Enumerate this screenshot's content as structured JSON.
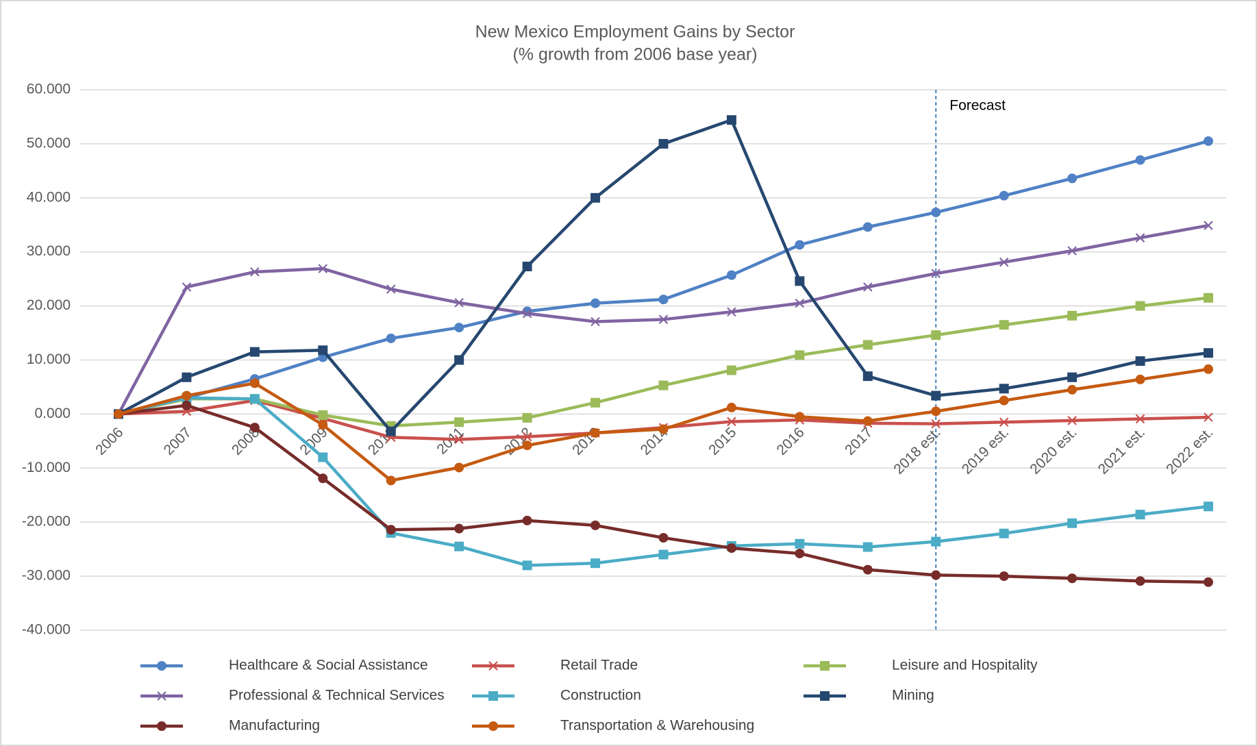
{
  "chart_data": {
    "type": "line",
    "title": "New Mexico Employment Gains by Sector",
    "subtitle": "(% growth from 2006 base year)",
    "categories": [
      "2006",
      "2007",
      "2008",
      "2009",
      "2010",
      "2011",
      "2012",
      "2013",
      "2014",
      "2015",
      "2016",
      "2017",
      "2018 est.",
      "2019 est.",
      "2020 est.",
      "2021 est.",
      "2022 est."
    ],
    "ylim": [
      -40,
      60
    ],
    "yticks": [
      {
        "value": -40,
        "label": "-40.000"
      },
      {
        "value": -30,
        "label": "-30.000"
      },
      {
        "value": -20,
        "label": "-20.000"
      },
      {
        "value": -10,
        "label": "-10.000"
      },
      {
        "value": 0,
        "label": "0.000"
      },
      {
        "value": 10,
        "label": "10.000"
      },
      {
        "value": 20,
        "label": "20.000"
      },
      {
        "value": 30,
        "label": "30.000"
      },
      {
        "value": 40,
        "label": "40.000"
      },
      {
        "value": 50,
        "label": "50.000"
      },
      {
        "value": 60,
        "label": "60.000"
      }
    ],
    "grid": true,
    "annotations": [
      {
        "text": "Forecast",
        "category": "2018 est."
      }
    ],
    "series": [
      {
        "name": "Healthcare & Social Assistance",
        "color": "#4f81c4",
        "marker": "circle",
        "values": [
          0,
          3,
          6.5,
          10.5,
          14,
          16,
          19,
          20.5,
          21.2,
          25.7,
          31.3,
          34.6,
          37.3,
          40.4,
          43.6,
          47,
          50.5
        ]
      },
      {
        "name": "Retail Trade",
        "color": "#c9504d",
        "marker": "x",
        "values": [
          0,
          0.5,
          2.5,
          -0.8,
          -4.3,
          -4.7,
          -4.2,
          -3.5,
          -2.5,
          -1.4,
          -1.1,
          -1.7,
          -1.8,
          -1.5,
          -1.2,
          -0.9,
          -0.6
        ]
      },
      {
        "name": "Leisure and Hospitality",
        "color": "#9bbb59",
        "marker": "square",
        "values": [
          0,
          2.8,
          2.8,
          -0.2,
          -2.2,
          -1.5,
          -0.7,
          2.1,
          5.3,
          8.1,
          10.9,
          12.8,
          14.6,
          16.5,
          18.2,
          20,
          21.5
        ]
      },
      {
        "name": "Professional & Technical Services",
        "color": "#8064a2",
        "marker": "x",
        "values": [
          0,
          23.5,
          26.3,
          26.9,
          23.1,
          20.6,
          18.6,
          17.1,
          17.5,
          18.9,
          20.5,
          23.5,
          26,
          28.1,
          30.2,
          32.6,
          34.9
        ]
      },
      {
        "name": "Construction",
        "color": "#4bacc6",
        "marker": "square",
        "values": [
          0,
          3,
          2.8,
          -8,
          -22,
          -24.5,
          -28,
          -27.6,
          -26,
          -24.4,
          -24,
          -24.6,
          -23.6,
          -22.1,
          -20.2,
          -18.6,
          -17.1
        ]
      },
      {
        "name": "Mining",
        "color": "#264870",
        "marker": "square",
        "values": [
          0,
          6.8,
          11.5,
          11.8,
          -3.2,
          10,
          27.3,
          40,
          50,
          54.4,
          24.6,
          7,
          3.4,
          4.7,
          6.8,
          9.8,
          11.3
        ]
      },
      {
        "name": "Manufacturing",
        "color": "#772c2a",
        "marker": "circle",
        "values": [
          0,
          1.6,
          -2.5,
          -11.9,
          -21.4,
          -21.2,
          -19.7,
          -20.6,
          -22.9,
          -24.8,
          -25.8,
          -28.8,
          -29.8,
          -30,
          -30.4,
          -30.9,
          -31.1
        ]
      },
      {
        "name": "Transportation & Warehousing",
        "color": "#c55a11",
        "marker": "circle",
        "values": [
          0,
          3.4,
          5.7,
          -2,
          -12.3,
          -9.9,
          -5.8,
          -3.5,
          -2.8,
          1.2,
          -0.5,
          -1.3,
          0.5,
          2.5,
          4.5,
          6.4,
          8.3
        ]
      }
    ]
  }
}
